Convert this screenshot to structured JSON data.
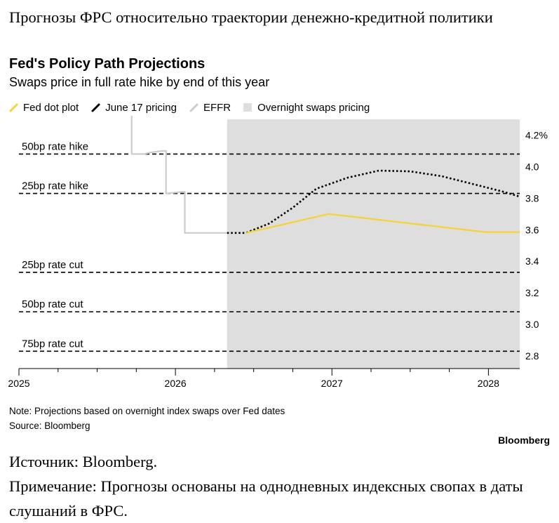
{
  "header": {
    "caption": "Прогнозы ФРС относительно траектории денежно-кредитной политики"
  },
  "chart_data": {
    "type": "line",
    "title": "Fed's Policy Path Projections",
    "subtitle": "Swaps price in full rate hike by end of this year",
    "legend": [
      {
        "label": "Fed dot plot",
        "color": "#f6d32d",
        "style": "solid"
      },
      {
        "label": "June 17 pricing",
        "color": "#000000",
        "style": "dotted"
      },
      {
        "label": "EFFR",
        "color": "#cccccc",
        "style": "solid"
      },
      {
        "label": "Overnight swaps pricing",
        "color": "#dedede",
        "style": "area"
      }
    ],
    "legend_position": "top-left",
    "x_ticks": [
      "2025",
      "2026",
      "2027",
      "2028"
    ],
    "xlim": [
      2025.0,
      2028.2
    ],
    "y_axis_side": "right",
    "y_ticks": [
      "4.2%",
      "4.0",
      "3.8",
      "3.6",
      "3.4",
      "3.2",
      "3.0",
      "2.8"
    ],
    "y_tick_values": [
      4.2,
      4.0,
      3.8,
      3.6,
      3.4,
      3.2,
      3.0,
      2.8
    ],
    "ylim": [
      2.72,
      4.3
    ],
    "shaded_region": {
      "label": "Overnight swaps pricing",
      "x_start": 2026.33,
      "x_end": 2028.2
    },
    "reference_lines": [
      {
        "label": "50bp rate hike",
        "y": 4.08
      },
      {
        "label": "25bp rate hike",
        "y": 3.83
      },
      {
        "label": "25bp rate cut",
        "y": 3.33
      },
      {
        "label": "50bp rate cut",
        "y": 3.08
      },
      {
        "label": "75bp rate cut",
        "y": 2.83
      }
    ],
    "series": [
      {
        "name": "EFFR",
        "color": "#cccccc",
        "style": "solid",
        "x": [
          2025.0,
          2025.72,
          2025.72,
          2025.8,
          2025.84,
          2025.84,
          2025.92,
          2025.94,
          2025.94,
          2026.04,
          2026.06,
          2026.06,
          2026.33
        ],
        "y": [
          4.33,
          4.33,
          4.08,
          4.08,
          4.09,
          4.09,
          4.1,
          4.1,
          3.83,
          3.84,
          3.84,
          3.58,
          3.58
        ]
      },
      {
        "name": "June 17 pricing",
        "color": "#000000",
        "style": "dotted",
        "x": [
          2026.33,
          2026.45,
          2026.6,
          2026.75,
          2026.9,
          2027.1,
          2027.3,
          2027.5,
          2027.7,
          2027.9,
          2028.1,
          2028.2
        ],
        "y": [
          3.58,
          3.58,
          3.64,
          3.74,
          3.86,
          3.93,
          3.975,
          3.97,
          3.94,
          3.89,
          3.84,
          3.81
        ]
      },
      {
        "name": "Fed dot plot",
        "color": "#f6d32d",
        "style": "solid",
        "x": [
          2026.45,
          2026.98,
          2027.98,
          2028.2
        ],
        "y": [
          3.58,
          3.7,
          3.585,
          3.585
        ]
      }
    ],
    "note": "Note: Projections based on overnight index swaps over Fed dates",
    "source": "Source: Bloomberg"
  },
  "brand": "Bloomberg",
  "footer": {
    "source": "Источник: Bloomberg.",
    "note": "Примечание: Прогнозы основаны на однодневных индексных свопах в даты слушаний в ФРС."
  }
}
